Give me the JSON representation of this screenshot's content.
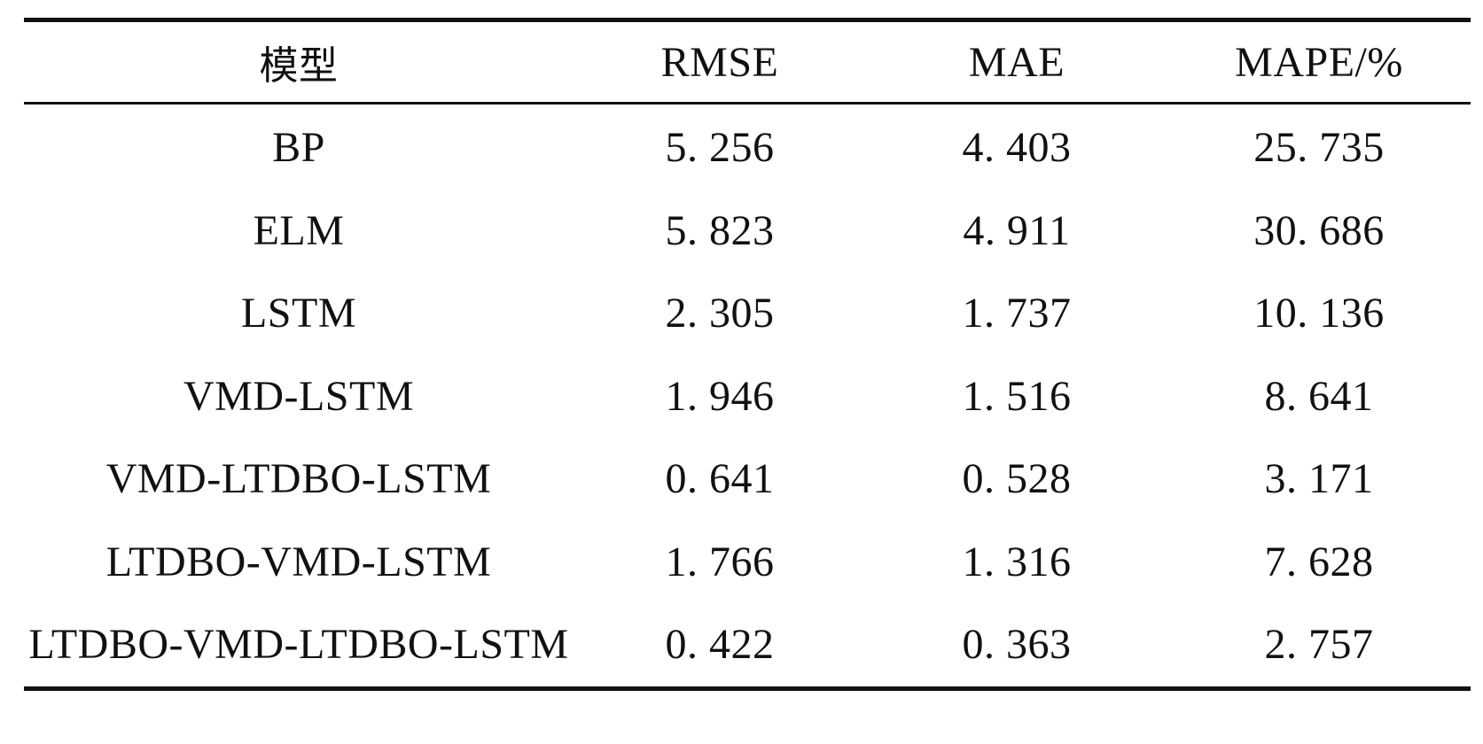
{
  "table": {
    "headers": [
      "模型",
      "RMSE",
      "MAE",
      "MAPE/%"
    ],
    "rows": [
      [
        "BP",
        "5. 256",
        "4. 403",
        "25. 735"
      ],
      [
        "ELM",
        "5. 823",
        "4. 911",
        "30. 686"
      ],
      [
        "LSTM",
        "2. 305",
        "1. 737",
        "10. 136"
      ],
      [
        "VMD-LSTM",
        "1. 946",
        "1. 516",
        "8. 641"
      ],
      [
        "VMD-LTDBO-LSTM",
        "0. 641",
        "0. 528",
        "3. 171"
      ],
      [
        "LTDBO-VMD-LSTM",
        "1. 766",
        "1. 316",
        "7. 628"
      ],
      [
        "LTDBO-VMD-LTDBO-LSTM",
        "0. 422",
        "0. 363",
        "2. 757"
      ]
    ]
  }
}
